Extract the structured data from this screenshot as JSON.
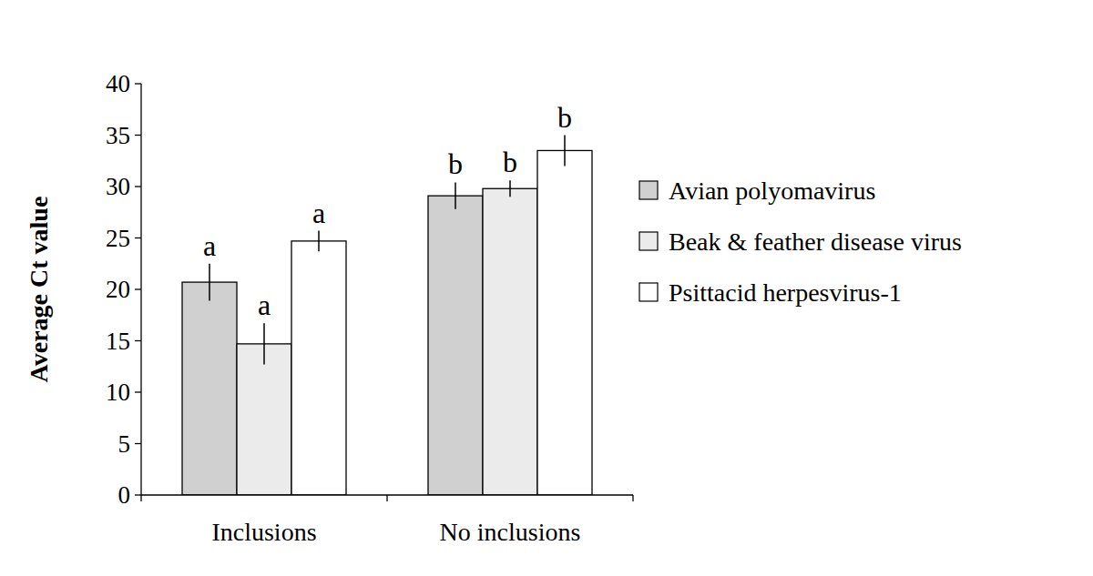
{
  "chart_data": {
    "type": "bar",
    "y_label": "Average Ct value",
    "categories": [
      "Inclusions",
      "No inclusions"
    ],
    "series": [
      {
        "name": "Avian polyomavirus",
        "color": "#d0d0d0",
        "values": [
          20.7,
          29.1
        ],
        "errors": [
          1.8,
          1.3
        ],
        "letters": [
          "a",
          "b"
        ]
      },
      {
        "name": "Beak & feather disease virus",
        "color": "#ebebeb",
        "values": [
          14.7,
          29.8
        ],
        "errors": [
          2.0,
          0.8
        ],
        "letters": [
          "a",
          "b"
        ]
      },
      {
        "name": "Psittacid herpesvirus-1",
        "color": "#ffffff",
        "values": [
          24.7,
          33.5
        ],
        "errors": [
          1.0,
          1.5
        ],
        "letters": [
          "a",
          "b"
        ]
      }
    ],
    "ylim": [
      0,
      40
    ],
    "yticks": [
      0,
      5,
      10,
      15,
      20,
      25,
      30,
      35,
      40
    ],
    "grid": false,
    "legend": "right"
  }
}
